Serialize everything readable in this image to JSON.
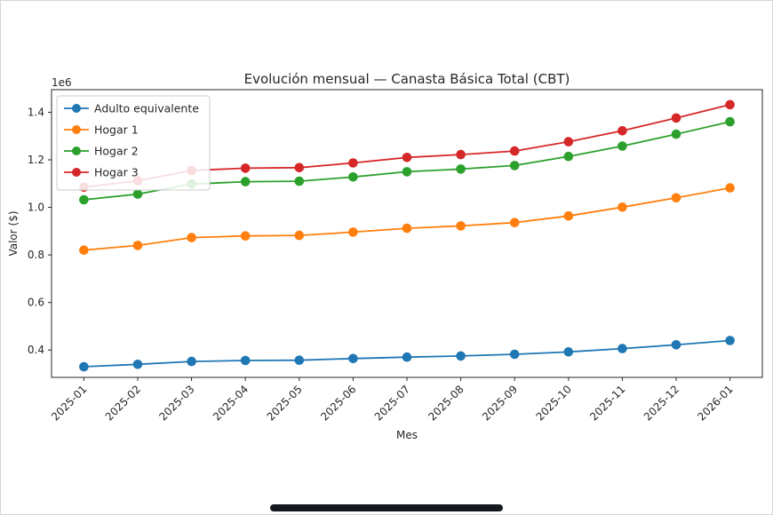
{
  "chart_data": {
    "type": "line",
    "title": "Evolución mensual — Canasta Básica Total (CBT)",
    "xlabel": "Mes",
    "ylabel": "Valor ($)",
    "y_offset_label": "1e6",
    "x_tick_labels": [
      "2025-01",
      "2025-02",
      "2025-03",
      "2025-04",
      "2025-05",
      "2025-06",
      "2025-07",
      "2025-08",
      "2025-09",
      "2025-10",
      "2025-11",
      "2025-12",
      "2026-01"
    ],
    "y_ticks": [
      400000,
      600000,
      800000,
      1000000,
      1200000,
      1400000
    ],
    "y_scale": 1000000,
    "ylim": [
      285000,
      1495000
    ],
    "xlim": [
      -0.6,
      12.6
    ],
    "grid": false,
    "legend_position": "upper-left",
    "marker": "circle",
    "text_color": "#262626",
    "spine_color": "#262626",
    "legend_border_color": "#cccccc",
    "series": [
      {
        "name": "Adulto equivalente",
        "color": "#1f77b4",
        "values": [
          330000,
          340000,
          352000,
          356000,
          357000,
          364000,
          370000,
          375000,
          382000,
          392000,
          406000,
          422000,
          440000
        ]
      },
      {
        "name": "Hogar 1",
        "color": "#ff7f0e",
        "values": [
          820000,
          840000,
          873000,
          880000,
          882000,
          896000,
          912000,
          922000,
          936000,
          964000,
          1001000,
          1040000,
          1082000
        ]
      },
      {
        "name": "Hogar 2",
        "color": "#2ca02c",
        "values": [
          1032000,
          1056000,
          1098000,
          1108000,
          1110000,
          1128000,
          1150000,
          1161000,
          1176000,
          1214000,
          1258000,
          1308000,
          1360000
        ]
      },
      {
        "name": "Hogar 3",
        "color": "#d62728",
        "values": [
          1085000,
          1112000,
          1155000,
          1165000,
          1167000,
          1187000,
          1210000,
          1222000,
          1237000,
          1276000,
          1322000,
          1376000,
          1432000
        ]
      }
    ]
  }
}
